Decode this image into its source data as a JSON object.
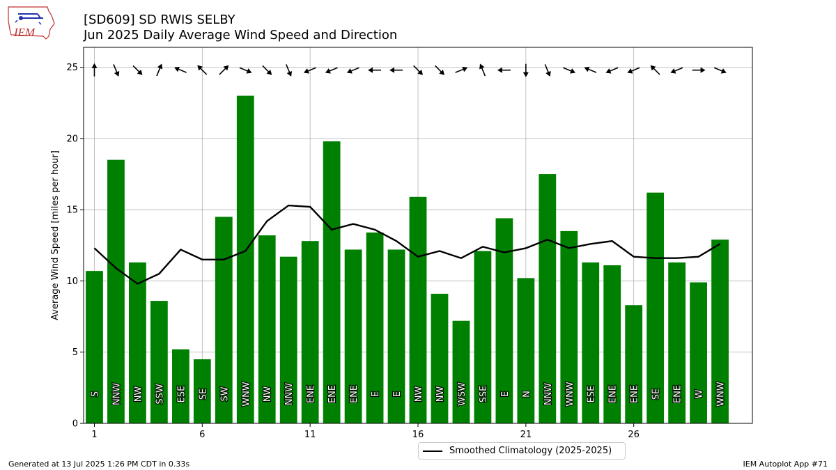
{
  "header": {
    "title_line1": "[SD609] SD RWIS SELBY",
    "title_line2": "Jun 2025 Daily Average Wind Speed and Direction"
  },
  "logo": {
    "text": "IEM",
    "icon": "iem-logo-icon"
  },
  "chart_data": {
    "type": "bar",
    "ylabel": "Average Wind Speed [miles per hour]",
    "xlabel": "",
    "ylim": [
      0,
      26.4
    ],
    "xlim": [
      0.5,
      31.5
    ],
    "yticks": [
      0,
      5,
      10,
      15,
      20,
      25
    ],
    "xticks": [
      1,
      6,
      11,
      16,
      21,
      26
    ],
    "grid": true,
    "days": [
      1,
      2,
      3,
      4,
      5,
      6,
      7,
      8,
      9,
      10,
      11,
      12,
      13,
      14,
      15,
      16,
      17,
      18,
      19,
      20,
      21,
      22,
      23,
      24,
      25,
      26,
      27,
      28,
      29,
      30
    ],
    "values": [
      10.7,
      18.5,
      11.3,
      8.6,
      5.2,
      4.5,
      14.5,
      23.0,
      13.2,
      11.7,
      12.8,
      19.8,
      12.2,
      13.4,
      12.2,
      15.9,
      9.1,
      7.2,
      12.1,
      14.4,
      10.2,
      17.5,
      13.5,
      11.3,
      11.1,
      8.3,
      16.2,
      11.3,
      9.9,
      12.9
    ],
    "directions": [
      "S",
      "NNW",
      "NW",
      "SSW",
      "ESE",
      "SE",
      "SW",
      "WNW",
      "NW",
      "NNW",
      "ENE",
      "ENE",
      "ENE",
      "E",
      "E",
      "NW",
      "NW",
      "WSW",
      "SSE",
      "E",
      "N",
      "NNW",
      "WNW",
      "ESE",
      "ENE",
      "ENE",
      "SE",
      "ENE",
      "W",
      "WNW"
    ],
    "arrow_bearings_deg": [
      180,
      337.5,
      315,
      202.5,
      112.5,
      135,
      225,
      292.5,
      315,
      337.5,
      67.5,
      67.5,
      67.5,
      90,
      90,
      315,
      315,
      247.5,
      157.5,
      90,
      0,
      337.5,
      292.5,
      112.5,
      67.5,
      67.5,
      135,
      67.5,
      270,
      292.5
    ],
    "bar_color": "#008000",
    "series": [
      {
        "name": "Smoothed Climatology (2025-2025)",
        "type": "line",
        "color": "#000000",
        "values": [
          12.3,
          10.9,
          9.8,
          10.5,
          12.2,
          11.5,
          11.5,
          12.1,
          14.2,
          15.3,
          15.2,
          13.6,
          14.0,
          13.6,
          12.8,
          11.7,
          12.1,
          11.6,
          12.4,
          12.0,
          12.3,
          12.9,
          12.3,
          12.6,
          12.8,
          11.7,
          11.6,
          11.6,
          11.7,
          12.6
        ]
      }
    ],
    "legend_position": "bottom-center"
  },
  "footer": {
    "left": "Generated at 13 Jul 2025 1:26 PM CDT in 0.33s",
    "right": "IEM Autoplot App #71"
  }
}
